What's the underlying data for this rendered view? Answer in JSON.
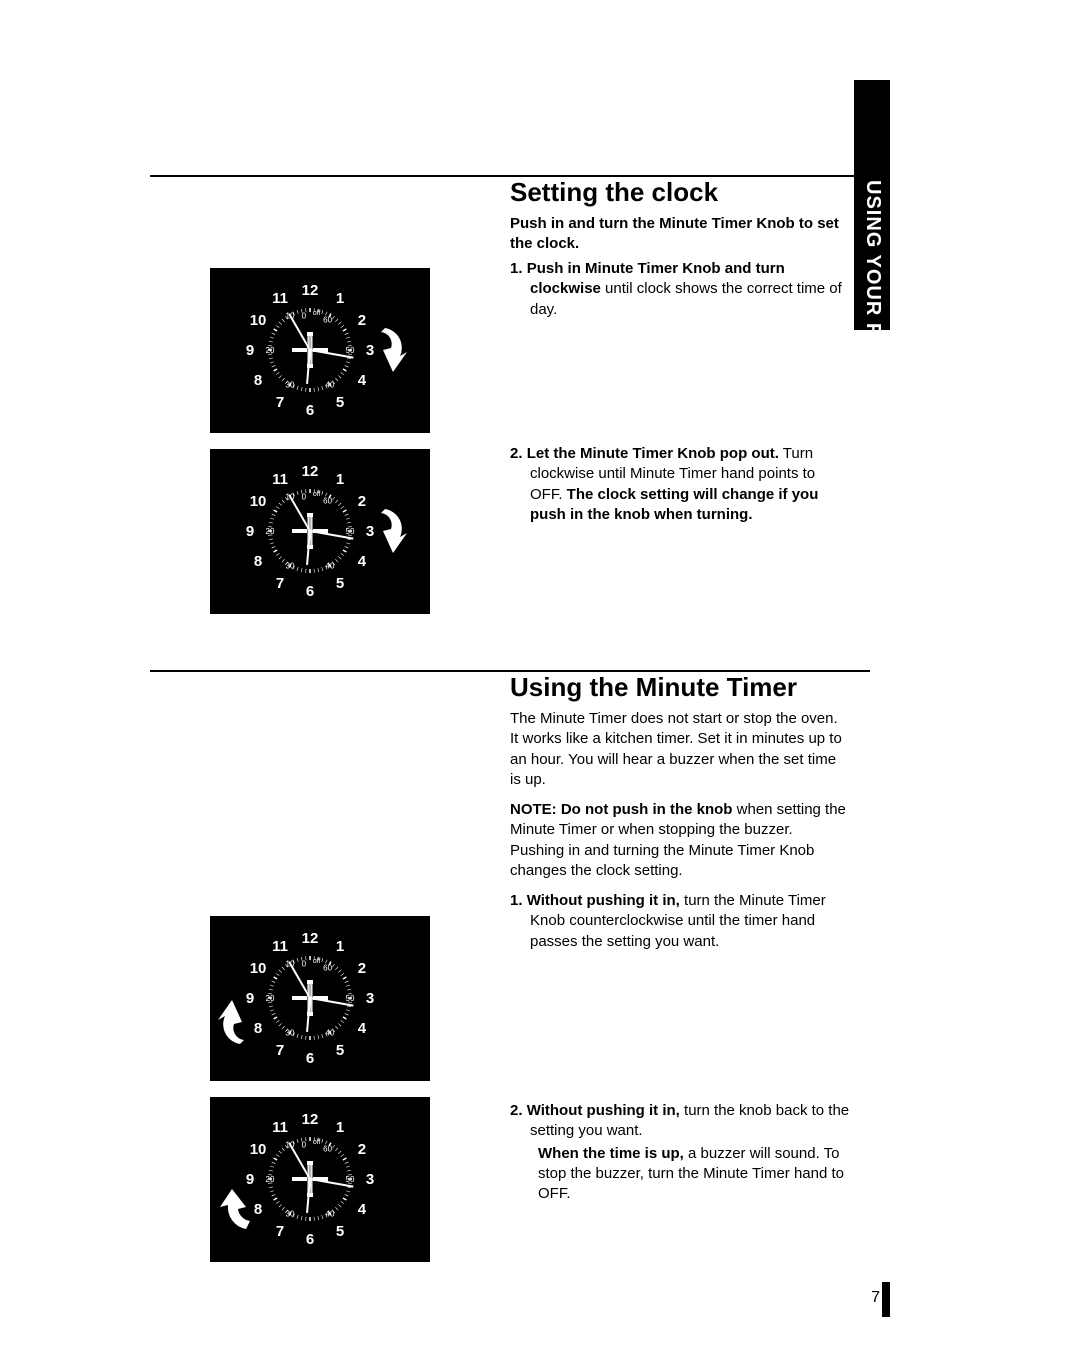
{
  "sideTab": "USING YOUR RANGE",
  "pageNumber": "7",
  "section1": {
    "heading": "Setting the clock",
    "intro": "Push in and turn the Minute Timer Knob to set the clock.",
    "step1": {
      "num": "1.",
      "bold": "Push in Minute Timer Knob and turn clockwise",
      "rest": " until clock shows the correct time of day."
    },
    "step2": {
      "num": "2.",
      "bold1": "Let the Minute Timer Knob pop out.",
      "mid": " Turn clockwise until Minute Timer hand points to OFF. ",
      "bold2": "The clock setting will change if you push in the knob when turning."
    }
  },
  "section2": {
    "heading": "Using the Minute Timer",
    "intro": "The Minute Timer does not start or stop the oven. It works like a kitchen timer. Set it in minutes up to an hour. You will hear a buzzer when the set time is up.",
    "note": {
      "bold": "NOTE: Do not push in the knob",
      "rest": " when setting the Minute Timer or when stopping the buzzer. Pushing in and turning the Minute Timer Knob changes the clock setting."
    },
    "step1": {
      "num": "1.",
      "bold": "Without pushing it in,",
      "rest": " turn the Minute Timer Knob counterclockwise until the timer hand passes the setting you want."
    },
    "step2": {
      "num": "2.",
      "bold1": "Without pushing it in,",
      "mid1": " turn the knob back to the setting you want.",
      "indentBold": "When the time is up,",
      "indentRest": " a buzzer will sound. To stop the buzzer, turn the Minute Timer hand to OFF."
    }
  },
  "clock": {
    "hours": [
      "12",
      "1",
      "2",
      "3",
      "4",
      "5",
      "6",
      "7",
      "8",
      "9",
      "10",
      "11"
    ],
    "minutes": [
      "0",
      "10",
      "20",
      "30",
      "40",
      "50",
      "60"
    ],
    "offLabel": "off",
    "colors": {
      "bg": "#000000",
      "fg": "#ffffff"
    }
  },
  "arrows": {
    "cw": "cw-right",
    "ccwLeft": "ccw-left"
  }
}
